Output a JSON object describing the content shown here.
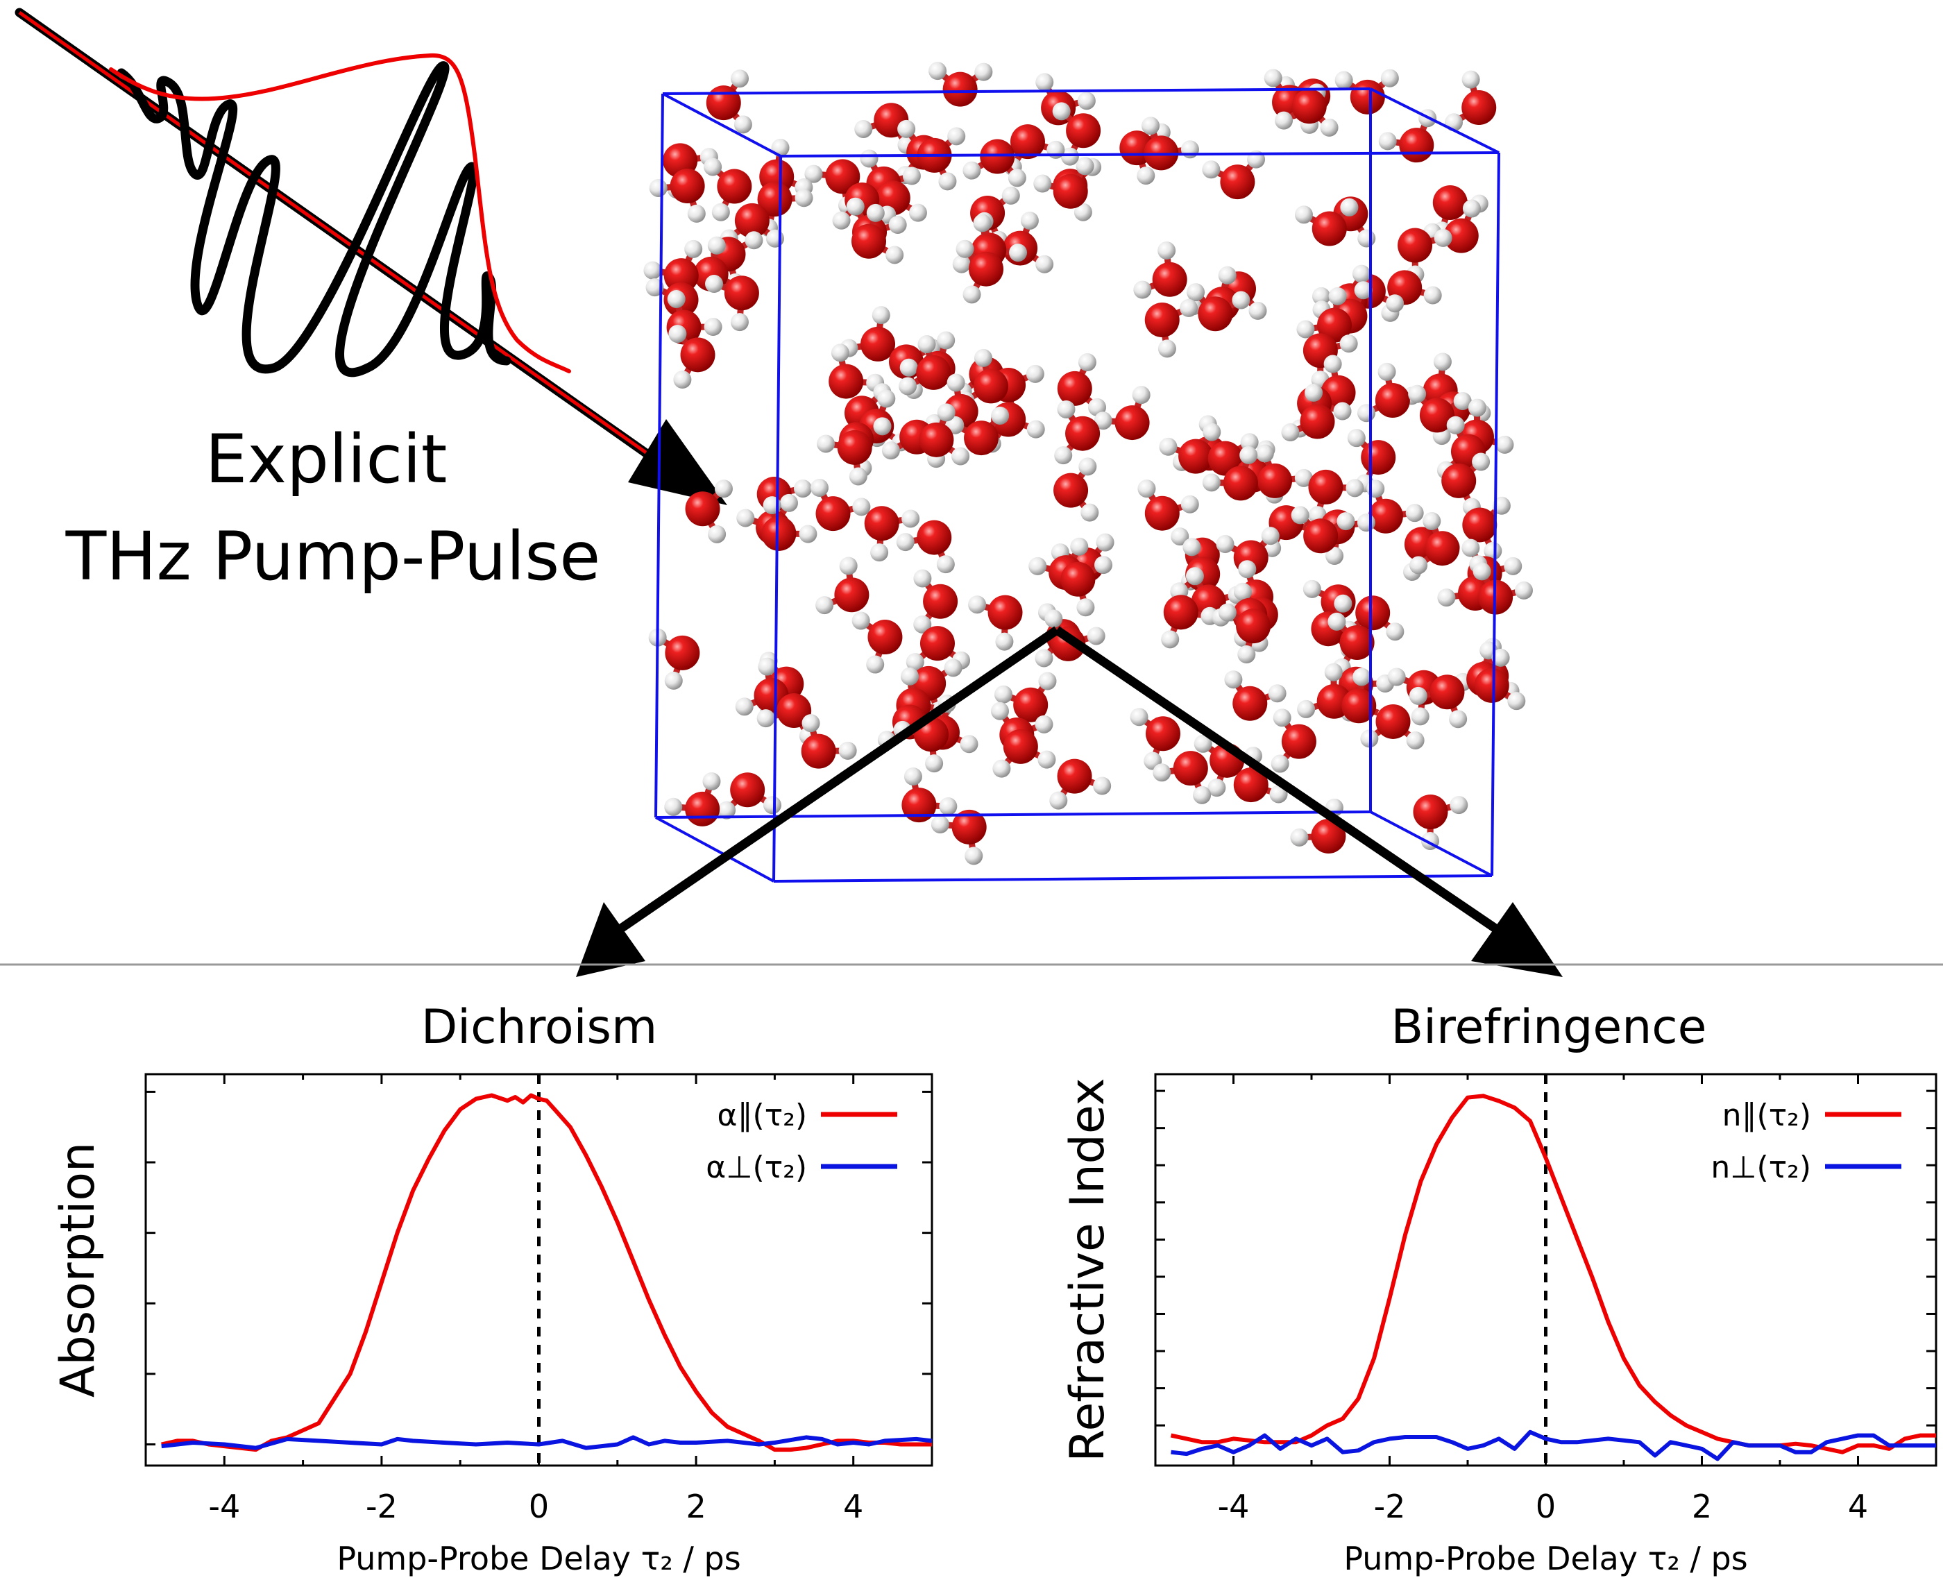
{
  "pulse_label": {
    "line1": "Explicit",
    "line2": "THz Pump-Pulse"
  },
  "colors": {
    "parallel": "#ee0000",
    "perpendicular": "#0a14e0",
    "box": "#1010ee",
    "oxygen": "#d01010",
    "hydrogen": "#ececec",
    "divider": "#999999"
  },
  "chart_data": [
    {
      "type": "line",
      "title": "Dichroism",
      "xlabel": "Pump-Probe Delay τ₂ / ps",
      "ylabel": "Absorption",
      "xlim": [
        -5,
        5
      ],
      "xticks": [
        -4,
        -2,
        0,
        2,
        4
      ],
      "xtick_labels": [
        "-4",
        "-2",
        "0",
        "2",
        "4"
      ],
      "ylim": [
        -0.06,
        1.05
      ],
      "y_tick_count": 6,
      "grid": false,
      "legend_position": "top-right",
      "vline_x": 0,
      "series": [
        {
          "name": "α∥(τ₂)",
          "color": "#ee0000",
          "x": [
            -4.8,
            -4.6,
            -4.4,
            -4.2,
            -4.0,
            -3.8,
            -3.6,
            -3.4,
            -3.2,
            -3.0,
            -2.8,
            -2.6,
            -2.4,
            -2.2,
            -2.0,
            -1.8,
            -1.6,
            -1.4,
            -1.2,
            -1.0,
            -0.8,
            -0.6,
            -0.4,
            -0.3,
            -0.2,
            -0.1,
            0.0,
            0.1,
            0.2,
            0.4,
            0.6,
            0.8,
            1.0,
            1.2,
            1.4,
            1.6,
            1.8,
            2.0,
            2.2,
            2.4,
            2.6,
            2.8,
            3.0,
            3.2,
            3.4,
            3.6,
            3.8,
            4.0,
            4.2,
            4.4,
            4.6,
            4.8,
            5.0
          ],
          "y": [
            0.0,
            0.01,
            0.01,
            0.0,
            -0.005,
            -0.01,
            -0.015,
            0.01,
            0.02,
            0.04,
            0.06,
            0.13,
            0.2,
            0.32,
            0.46,
            0.6,
            0.72,
            0.81,
            0.89,
            0.95,
            0.98,
            0.99,
            0.975,
            0.985,
            0.97,
            0.99,
            0.98,
            0.975,
            0.95,
            0.9,
            0.82,
            0.73,
            0.63,
            0.52,
            0.41,
            0.31,
            0.22,
            0.15,
            0.09,
            0.05,
            0.03,
            0.01,
            -0.015,
            -0.015,
            -0.01,
            0.0,
            0.01,
            0.01,
            0.005,
            0.005,
            0.0,
            0.0,
            0.0
          ]
        },
        {
          "name": "α⊥(τ₂)",
          "color": "#0a14e0",
          "x": [
            -4.8,
            -4.4,
            -4.0,
            -3.6,
            -3.2,
            -2.8,
            -2.4,
            -2.0,
            -1.8,
            -1.6,
            -1.2,
            -0.8,
            -0.4,
            0.0,
            0.3,
            0.6,
            0.8,
            1.0,
            1.2,
            1.4,
            1.6,
            1.8,
            2.0,
            2.4,
            2.8,
            3.0,
            3.4,
            3.6,
            3.8,
            4.0,
            4.2,
            4.4,
            4.8,
            5.0
          ],
          "y": [
            -0.005,
            0.005,
            0.0,
            -0.01,
            0.015,
            0.01,
            0.005,
            0.0,
            0.015,
            0.01,
            0.005,
            0.0,
            0.005,
            0.0,
            0.01,
            -0.01,
            -0.005,
            0.0,
            0.02,
            0.0,
            0.01,
            0.005,
            0.005,
            0.01,
            0.0,
            0.005,
            0.02,
            0.015,
            0.0,
            0.005,
            0.0,
            0.01,
            0.015,
            0.01
          ]
        }
      ]
    },
    {
      "type": "line",
      "title": "Birefringence",
      "xlabel": "Pump-Probe Delay τ₂ / ps",
      "ylabel": "Refractive Index",
      "xlim": [
        -5,
        5
      ],
      "xticks": [
        -4,
        -2,
        0,
        2,
        4
      ],
      "xtick_labels": [
        "-4",
        "-2",
        "0",
        "2",
        "4"
      ],
      "ylim": [
        -0.12,
        1.05
      ],
      "y_tick_count": 10,
      "grid": false,
      "legend_position": "top-right",
      "vline_x": 0,
      "series": [
        {
          "name": "n∥(τ₂)",
          "color": "#ee0000",
          "x": [
            -4.8,
            -4.6,
            -4.4,
            -4.2,
            -4.0,
            -3.8,
            -3.6,
            -3.4,
            -3.2,
            -3.0,
            -2.8,
            -2.6,
            -2.4,
            -2.2,
            -2.0,
            -1.8,
            -1.6,
            -1.4,
            -1.2,
            -1.0,
            -0.8,
            -0.6,
            -0.4,
            -0.2,
            0.0,
            0.2,
            0.4,
            0.6,
            0.8,
            1.0,
            1.2,
            1.4,
            1.6,
            1.8,
            2.0,
            2.2,
            2.4,
            2.6,
            2.8,
            3.0,
            3.2,
            3.4,
            3.6,
            3.8,
            4.0,
            4.2,
            4.4,
            4.6,
            4.8,
            5.0
          ],
          "y": [
            -0.03,
            -0.04,
            -0.05,
            -0.05,
            -0.04,
            -0.045,
            -0.05,
            -0.05,
            -0.05,
            -0.03,
            0.0,
            0.02,
            0.08,
            0.2,
            0.38,
            0.57,
            0.73,
            0.84,
            0.92,
            0.98,
            0.985,
            0.97,
            0.95,
            0.91,
            0.8,
            0.68,
            0.56,
            0.44,
            0.31,
            0.2,
            0.12,
            0.07,
            0.03,
            0.0,
            -0.02,
            -0.04,
            -0.05,
            -0.06,
            -0.06,
            -0.06,
            -0.055,
            -0.06,
            -0.07,
            -0.08,
            -0.06,
            -0.06,
            -0.07,
            -0.04,
            -0.03,
            -0.03
          ]
        },
        {
          "name": "n⊥(τ₂)",
          "color": "#0a14e0",
          "x": [
            -4.8,
            -4.6,
            -4.4,
            -4.2,
            -4.0,
            -3.8,
            -3.6,
            -3.4,
            -3.2,
            -3.0,
            -2.8,
            -2.6,
            -2.4,
            -2.2,
            -2.0,
            -1.8,
            -1.6,
            -1.4,
            -1.2,
            -1.0,
            -0.8,
            -0.6,
            -0.4,
            -0.2,
            0.0,
            0.2,
            0.4,
            0.6,
            0.8,
            1.0,
            1.2,
            1.4,
            1.6,
            1.8,
            2.0,
            2.2,
            2.4,
            2.6,
            2.8,
            3.0,
            3.2,
            3.4,
            3.6,
            3.8,
            4.0,
            4.2,
            4.4,
            4.6,
            4.8,
            5.0
          ],
          "y": [
            -0.08,
            -0.085,
            -0.07,
            -0.06,
            -0.08,
            -0.06,
            -0.03,
            -0.07,
            -0.04,
            -0.06,
            -0.04,
            -0.08,
            -0.075,
            -0.05,
            -0.04,
            -0.035,
            -0.035,
            -0.035,
            -0.05,
            -0.07,
            -0.06,
            -0.04,
            -0.07,
            -0.02,
            -0.04,
            -0.05,
            -0.05,
            -0.045,
            -0.04,
            -0.045,
            -0.05,
            -0.09,
            -0.05,
            -0.06,
            -0.07,
            -0.1,
            -0.05,
            -0.06,
            -0.06,
            -0.06,
            -0.08,
            -0.08,
            -0.05,
            -0.04,
            -0.03,
            -0.03,
            -0.06,
            -0.06,
            -0.06,
            -0.06
          ]
        }
      ]
    }
  ]
}
